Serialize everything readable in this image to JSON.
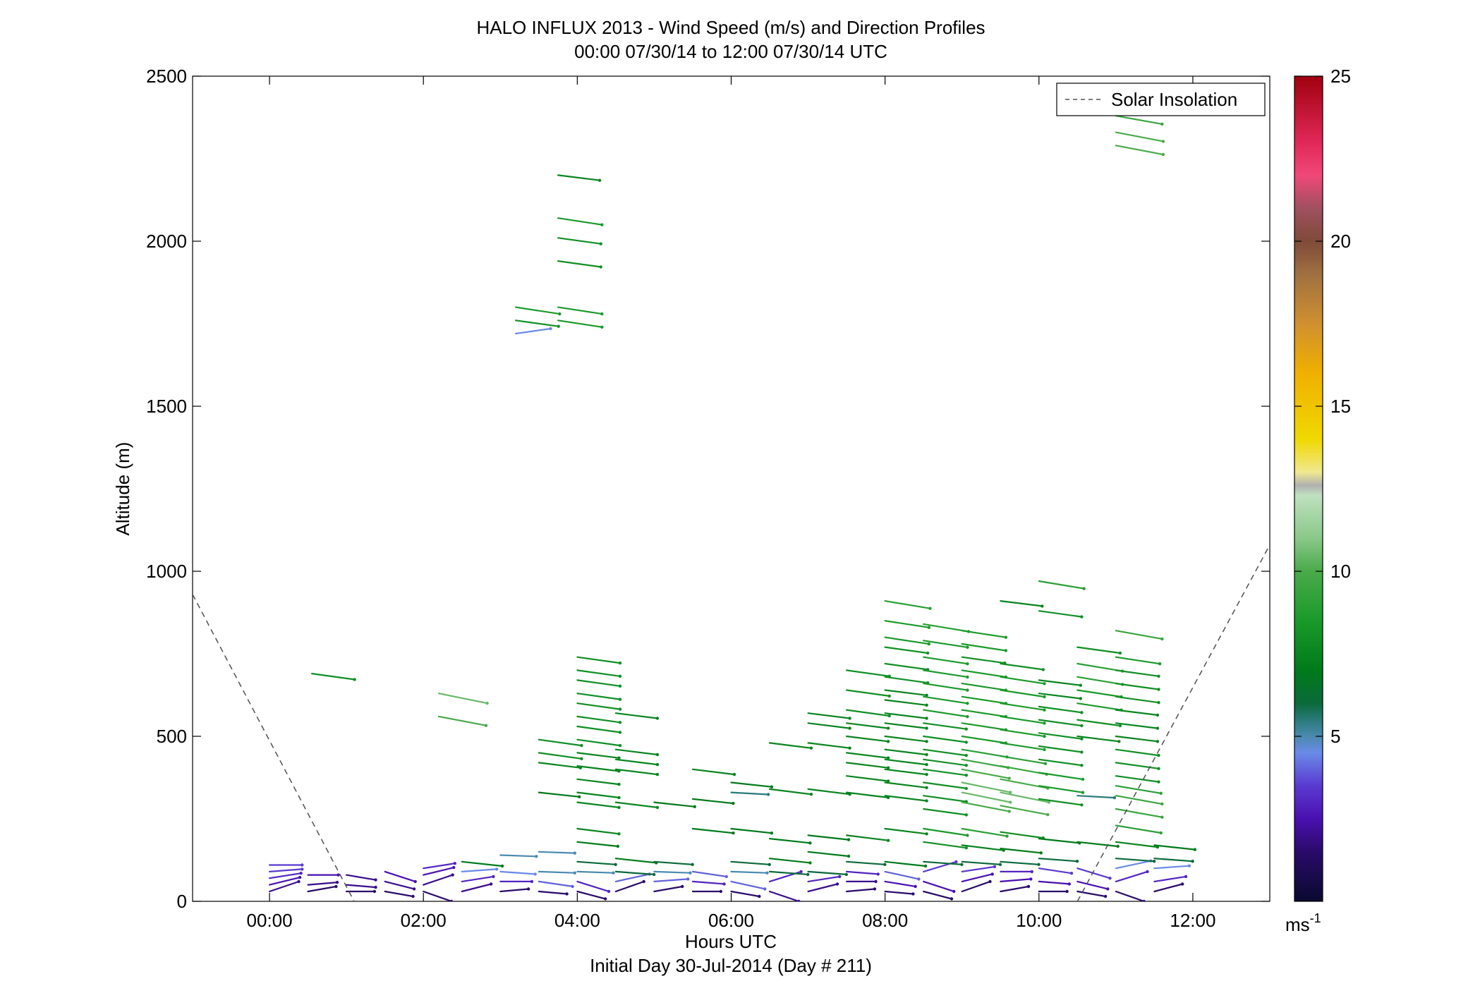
{
  "chart_data": {
    "type": "scatter",
    "title": "HALO INFLUX 2013 - Wind Speed (m/s) and Direction Profiles",
    "subtitle": "00:00 07/30/14 to 12:00 07/30/14  UTC",
    "xlabel": "Hours UTC",
    "xlabel2": "Initial Day 30-Jul-2014 (Day # 211)",
    "ylabel": "Altitude (m)",
    "xlim": [
      -1.0,
      13.0
    ],
    "ylim": [
      0,
      2500
    ],
    "x_ticks": [
      0,
      2,
      4,
      6,
      8,
      10,
      12
    ],
    "x_tick_labels": [
      "00:00",
      "02:00",
      "04:00",
      "06:00",
      "08:00",
      "10:00",
      "12:00"
    ],
    "y_ticks": [
      0,
      500,
      1000,
      1500,
      2000,
      2500
    ],
    "y_tick_labels": [
      "0",
      "500",
      "1000",
      "1500",
      "2000",
      "2500"
    ],
    "colorbar": {
      "min": 0,
      "max": 25,
      "ticks": [
        5,
        10,
        15,
        20,
        25
      ],
      "tick_labels": [
        "5",
        "10",
        "15",
        "20",
        "25"
      ],
      "unit_label": "ms",
      "unit_exponent": "-1",
      "stops": [
        [
          0,
          "#0a0a30"
        ],
        [
          1.5,
          "#2a0a6a"
        ],
        [
          2.5,
          "#4a10b0"
        ],
        [
          3.5,
          "#5a3ad0"
        ],
        [
          4.5,
          "#6a8ae8"
        ],
        [
          5.0,
          "#4a8ab0"
        ],
        [
          5.5,
          "#2a7a7a"
        ],
        [
          6.0,
          "#0a6a3a"
        ],
        [
          7.0,
          "#007a1a"
        ],
        [
          8.5,
          "#1a9a2a"
        ],
        [
          10.0,
          "#4aaa4a"
        ],
        [
          11.0,
          "#8ac88a"
        ],
        [
          12.3,
          "#c0e0c0"
        ],
        [
          12.6,
          "#b0b0b0"
        ],
        [
          13.0,
          "#f0e890"
        ],
        [
          14.0,
          "#f0d800"
        ],
        [
          16.0,
          "#f0b000"
        ],
        [
          17.5,
          "#d09030"
        ],
        [
          19.0,
          "#a07040"
        ],
        [
          20.0,
          "#804a3a"
        ],
        [
          21.0,
          "#a05060"
        ],
        [
          22.0,
          "#f04878"
        ],
        [
          23.0,
          "#e02858"
        ],
        [
          25.0,
          "#a00010"
        ]
      ]
    },
    "legend": {
      "position": "top-right",
      "entries": [
        "Solar Insolation"
      ]
    },
    "series": [
      {
        "name": "Solar Insolation",
        "style": "dashed",
        "color": "#505050",
        "segments": [
          [
            [
              -1.0,
              930
            ],
            [
              1.1,
              0
            ]
          ],
          [
            [
              10.5,
              0
            ],
            [
              13.0,
              1080
            ]
          ]
        ]
      }
    ],
    "wind_columns": [
      {
        "x": 0.0,
        "levels": [
          [
            30,
            2.0
          ],
          [
            50,
            2.5
          ],
          [
            70,
            3.0
          ],
          [
            90,
            3.5
          ],
          [
            110,
            3.5
          ]
        ]
      },
      {
        "x": 0.5,
        "levels": [
          [
            30,
            1.5
          ],
          [
            50,
            2.0
          ],
          [
            80,
            2.5
          ]
        ]
      },
      {
        "x": 0.55,
        "levels": [
          [
            690,
            8.0
          ]
        ]
      },
      {
        "x": 1.0,
        "levels": [
          [
            30,
            1.5
          ],
          [
            50,
            2.0
          ],
          [
            80,
            2.0
          ]
        ]
      },
      {
        "x": 1.5,
        "levels": [
          [
            30,
            1.5
          ],
          [
            60,
            2.0
          ],
          [
            90,
            2.5
          ]
        ]
      },
      {
        "x": 2.0,
        "levels": [
          [
            30,
            1.5
          ],
          [
            50,
            2.0
          ],
          [
            80,
            2.5
          ],
          [
            100,
            3.0
          ]
        ]
      },
      {
        "x": 2.2,
        "levels": [
          [
            560,
            10.0
          ],
          [
            630,
            10.5
          ]
        ]
      },
      {
        "x": 2.5,
        "levels": [
          [
            30,
            2.0
          ],
          [
            60,
            3.0
          ],
          [
            90,
            4.5
          ],
          [
            120,
            7.0
          ]
        ]
      },
      {
        "x": 3.0,
        "levels": [
          [
            30,
            1.5
          ],
          [
            60,
            3.0
          ],
          [
            90,
            4.5
          ],
          [
            140,
            5.0
          ]
        ]
      },
      {
        "x": 3.2,
        "levels": [
          [
            1720,
            4.5
          ],
          [
            1760,
            8.0
          ],
          [
            1800,
            8.5
          ]
        ]
      },
      {
        "x": 3.5,
        "levels": [
          [
            30,
            1.5
          ],
          [
            60,
            4.0
          ],
          [
            90,
            5.0
          ],
          [
            150,
            5.0
          ],
          [
            330,
            7.0
          ],
          [
            420,
            7.5
          ],
          [
            450,
            8.0
          ],
          [
            490,
            8.0
          ]
        ]
      },
      {
        "x": 3.75,
        "levels": [
          [
            1760,
            8.5
          ],
          [
            1800,
            8.5
          ],
          [
            1940,
            8.0
          ],
          [
            2010,
            8.0
          ],
          [
            2070,
            8.5
          ],
          [
            2200,
            7.5
          ]
        ]
      },
      {
        "x": 4.0,
        "levels": [
          [
            30,
            1.5
          ],
          [
            60,
            3.0
          ],
          [
            90,
            5.0
          ],
          [
            120,
            6.0
          ],
          [
            180,
            7.0
          ],
          [
            220,
            7.5
          ],
          [
            300,
            7.5
          ],
          [
            330,
            7.5
          ],
          [
            370,
            7.5
          ],
          [
            410,
            7.5
          ],
          [
            450,
            7.5
          ],
          [
            490,
            8.0
          ],
          [
            530,
            8.0
          ],
          [
            560,
            8.0
          ],
          [
            600,
            8.0
          ],
          [
            630,
            8.0
          ],
          [
            670,
            8.0
          ],
          [
            700,
            8.0
          ],
          [
            740,
            8.0
          ]
        ]
      },
      {
        "x": 4.5,
        "levels": [
          [
            30,
            1.5
          ],
          [
            60,
            4.0
          ],
          [
            90,
            6.0
          ],
          [
            130,
            7.0
          ],
          [
            300,
            7.5
          ],
          [
            400,
            7.5
          ],
          [
            430,
            7.5
          ],
          [
            460,
            7.5
          ],
          [
            570,
            7.5
          ]
        ]
      },
      {
        "x": 5.0,
        "levels": [
          [
            30,
            1.5
          ],
          [
            60,
            4.0
          ],
          [
            90,
            5.0
          ],
          [
            120,
            6.0
          ],
          [
            300,
            7.0
          ]
        ]
      },
      {
        "x": 5.5,
        "levels": [
          [
            30,
            1.5
          ],
          [
            60,
            3.0
          ],
          [
            90,
            4.0
          ],
          [
            220,
            7.0
          ],
          [
            310,
            7.0
          ],
          [
            400,
            7.5
          ]
        ]
      },
      {
        "x": 6.0,
        "levels": [
          [
            30,
            1.5
          ],
          [
            60,
            4.0
          ],
          [
            90,
            5.0
          ],
          [
            120,
            6.0
          ],
          [
            220,
            7.0
          ],
          [
            330,
            5.5
          ],
          [
            360,
            7.0
          ]
        ]
      },
      {
        "x": 6.5,
        "levels": [
          [
            30,
            2.0
          ],
          [
            60,
            3.0
          ],
          [
            90,
            6.0
          ],
          [
            130,
            7.0
          ],
          [
            190,
            7.0
          ],
          [
            340,
            7.5
          ],
          [
            480,
            7.5
          ]
        ]
      },
      {
        "x": 7.0,
        "levels": [
          [
            30,
            2.0
          ],
          [
            60,
            3.0
          ],
          [
            90,
            6.0
          ],
          [
            150,
            7.0
          ],
          [
            200,
            7.0
          ],
          [
            340,
            7.5
          ],
          [
            480,
            7.5
          ],
          [
            540,
            7.5
          ],
          [
            570,
            7.5
          ]
        ]
      },
      {
        "x": 7.5,
        "levels": [
          [
            30,
            1.5
          ],
          [
            60,
            2.0
          ],
          [
            90,
            3.0
          ],
          [
            120,
            6.0
          ],
          [
            200,
            7.5
          ],
          [
            330,
            7.5
          ],
          [
            380,
            7.5
          ],
          [
            420,
            7.5
          ],
          [
            450,
            7.5
          ],
          [
            500,
            7.5
          ],
          [
            540,
            7.5
          ],
          [
            580,
            8.0
          ],
          [
            640,
            8.0
          ],
          [
            700,
            8.0
          ]
        ]
      },
      {
        "x": 8.0,
        "levels": [
          [
            30,
            1.5
          ],
          [
            60,
            2.5
          ],
          [
            90,
            4.0
          ],
          [
            120,
            7.0
          ],
          [
            220,
            7.5
          ],
          [
            320,
            7.5
          ],
          [
            360,
            7.5
          ],
          [
            400,
            7.5
          ],
          [
            430,
            7.5
          ],
          [
            460,
            7.5
          ],
          [
            500,
            7.5
          ],
          [
            540,
            7.5
          ],
          [
            570,
            7.5
          ],
          [
            610,
            7.5
          ],
          [
            640,
            7.5
          ],
          [
            680,
            8.0
          ],
          [
            720,
            8.0
          ],
          [
            770,
            8.0
          ],
          [
            800,
            8.5
          ],
          [
            850,
            8.5
          ],
          [
            910,
            9.0
          ]
        ]
      },
      {
        "x": 8.5,
        "levels": [
          [
            30,
            1.5
          ],
          [
            60,
            2.5
          ],
          [
            90,
            3.5
          ],
          [
            120,
            6.0
          ],
          [
            180,
            8.0
          ],
          [
            220,
            8.5
          ],
          [
            280,
            8.0
          ],
          [
            320,
            8.0
          ],
          [
            360,
            8.0
          ],
          [
            400,
            8.0
          ],
          [
            430,
            8.0
          ],
          [
            460,
            8.0
          ],
          [
            500,
            8.0
          ],
          [
            540,
            8.0
          ],
          [
            580,
            8.5
          ],
          [
            620,
            8.5
          ],
          [
            660,
            8.5
          ],
          [
            700,
            8.5
          ],
          [
            740,
            8.5
          ],
          [
            790,
            8.5
          ],
          [
            840,
            9.0
          ]
        ]
      },
      {
        "x": 9.0,
        "levels": [
          [
            30,
            1.5
          ],
          [
            60,
            2.5
          ],
          [
            90,
            3.5
          ],
          [
            120,
            6.0
          ],
          [
            170,
            7.5
          ],
          [
            220,
            9.0
          ],
          [
            300,
            10.0
          ],
          [
            330,
            10.5
          ],
          [
            360,
            10.5
          ],
          [
            400,
            10.0
          ],
          [
            430,
            9.5
          ],
          [
            460,
            9.0
          ],
          [
            500,
            8.5
          ],
          [
            540,
            8.5
          ],
          [
            580,
            8.5
          ],
          [
            620,
            8.5
          ],
          [
            660,
            8.5
          ],
          [
            700,
            8.5
          ],
          [
            740,
            8.0
          ],
          [
            780,
            8.5
          ],
          [
            820,
            8.5
          ]
        ]
      },
      {
        "x": 9.5,
        "levels": [
          [
            30,
            1.5
          ],
          [
            60,
            2.5
          ],
          [
            90,
            3.0
          ],
          [
            120,
            6.0
          ],
          [
            160,
            7.0
          ],
          [
            210,
            8.0
          ],
          [
            290,
            10.0
          ],
          [
            330,
            10.5
          ],
          [
            370,
            10.0
          ],
          [
            410,
            9.5
          ],
          [
            440,
            9.0
          ],
          [
            480,
            8.5
          ],
          [
            520,
            8.5
          ],
          [
            560,
            8.5
          ],
          [
            600,
            8.5
          ],
          [
            640,
            8.5
          ],
          [
            680,
            8.5
          ],
          [
            720,
            8.0
          ],
          [
            910,
            7.5
          ]
        ]
      },
      {
        "x": 10.0,
        "levels": [
          [
            30,
            1.5
          ],
          [
            60,
            2.5
          ],
          [
            100,
            3.5
          ],
          [
            130,
            6.0
          ],
          [
            190,
            7.0
          ],
          [
            310,
            8.0
          ],
          [
            350,
            8.5
          ],
          [
            390,
            8.5
          ],
          [
            430,
            8.0
          ],
          [
            470,
            8.0
          ],
          [
            510,
            8.0
          ],
          [
            550,
            8.0
          ],
          [
            590,
            8.0
          ],
          [
            630,
            7.5
          ],
          [
            670,
            7.5
          ],
          [
            880,
            8.0
          ],
          [
            970,
            9.0
          ]
        ]
      },
      {
        "x": 10.5,
        "levels": [
          [
            30,
            1.5
          ],
          [
            60,
            2.5
          ],
          [
            100,
            3.5
          ],
          [
            180,
            7.0
          ],
          [
            320,
            5.5
          ],
          [
            500,
            7.5
          ],
          [
            550,
            8.0
          ],
          [
            600,
            8.5
          ],
          [
            640,
            8.5
          ],
          [
            680,
            9.0
          ],
          [
            720,
            9.0
          ],
          [
            770,
            8.0
          ]
        ]
      },
      {
        "x": 11.0,
        "levels": [
          [
            30,
            1.5
          ],
          [
            60,
            3.0
          ],
          [
            100,
            4.5
          ],
          [
            130,
            6.0
          ],
          [
            180,
            7.5
          ],
          [
            230,
            9.0
          ],
          [
            280,
            9.5
          ],
          [
            320,
            9.5
          ],
          [
            350,
            9.0
          ],
          [
            380,
            8.0
          ],
          [
            420,
            8.0
          ],
          [
            460,
            8.0
          ],
          [
            500,
            7.5
          ],
          [
            540,
            7.5
          ],
          [
            580,
            7.5
          ],
          [
            620,
            8.0
          ],
          [
            660,
            8.0
          ],
          [
            700,
            8.0
          ],
          [
            740,
            8.5
          ],
          [
            820,
            9.5
          ],
          [
            2290,
            10.0
          ],
          [
            2330,
            10.0
          ],
          [
            2380,
            9.5
          ]
        ]
      },
      {
        "x": 11.5,
        "levels": [
          [
            30,
            1.5
          ],
          [
            60,
            3.0
          ],
          [
            100,
            4.5
          ],
          [
            130,
            6.0
          ],
          [
            170,
            7.0
          ]
        ]
      }
    ]
  }
}
